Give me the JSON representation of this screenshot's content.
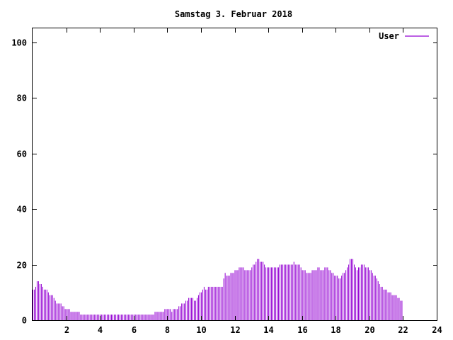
{
  "chart_data": {
    "type": "bar",
    "title": "Samstag 3. Februar 2018",
    "xlabel": "",
    "ylabel": "",
    "xlim": [
      0,
      24
    ],
    "ylim": [
      0,
      105
    ],
    "xticks": [
      2,
      4,
      6,
      8,
      10,
      12,
      14,
      16,
      18,
      20,
      22,
      24
    ],
    "yticks": [
      0,
      20,
      40,
      60,
      80,
      100
    ],
    "grid": false,
    "legend": {
      "position": "top-right"
    },
    "series": [
      {
        "name": "User",
        "color": "#9400d3",
        "interval_minutes": 5,
        "values": [
          11,
          11,
          12,
          14,
          14,
          13,
          13,
          12,
          11,
          11,
          11,
          10,
          9,
          9,
          9,
          8,
          7,
          6,
          6,
          6,
          6,
          5,
          5,
          4,
          4,
          4,
          4,
          3,
          3,
          3,
          3,
          3,
          3,
          3,
          2,
          2,
          2,
          2,
          2,
          2,
          2,
          2,
          2,
          2,
          2,
          2,
          2,
          2,
          2,
          2,
          2,
          2,
          2,
          2,
          2,
          2,
          2,
          2,
          2,
          2,
          2,
          2,
          2,
          2,
          2,
          2,
          2,
          2,
          2,
          2,
          2,
          2,
          2,
          2,
          2,
          2,
          2,
          2,
          2,
          2,
          2,
          2,
          2,
          2,
          2,
          2,
          2,
          3,
          3,
          3,
          3,
          3,
          3,
          3,
          4,
          4,
          4,
          4,
          4,
          3,
          4,
          4,
          4,
          4,
          5,
          5,
          6,
          6,
          6,
          7,
          7,
          8,
          8,
          8,
          8,
          7,
          7,
          8,
          9,
          10,
          10,
          11,
          12,
          11,
          11,
          12,
          12,
          12,
          12,
          12,
          12,
          12,
          12,
          12,
          12,
          12,
          15,
          17,
          16,
          16,
          16,
          17,
          17,
          17,
          18,
          18,
          18,
          19,
          19,
          19,
          19,
          18,
          18,
          18,
          18,
          18,
          19,
          20,
          20,
          21,
          22,
          22,
          21,
          21,
          21,
          20,
          19,
          19,
          19,
          19,
          19,
          19,
          19,
          19,
          19,
          19,
          20,
          20,
          20,
          20,
          20,
          20,
          20,
          20,
          20,
          20,
          21,
          20,
          20,
          20,
          20,
          19,
          18,
          18,
          18,
          17,
          17,
          17,
          17,
          18,
          18,
          18,
          18,
          19,
          19,
          18,
          18,
          18,
          19,
          19,
          19,
          18,
          18,
          17,
          17,
          16,
          16,
          16,
          15,
          15,
          16,
          17,
          17,
          18,
          19,
          20,
          22,
          22,
          22,
          20,
          19,
          18,
          19,
          19,
          20,
          20,
          20,
          19,
          19,
          19,
          18,
          18,
          17,
          16,
          16,
          15,
          14,
          13,
          12,
          12,
          11,
          11,
          11,
          10,
          10,
          10,
          9,
          9,
          9,
          9,
          8,
          8,
          7,
          7
        ]
      }
    ]
  }
}
